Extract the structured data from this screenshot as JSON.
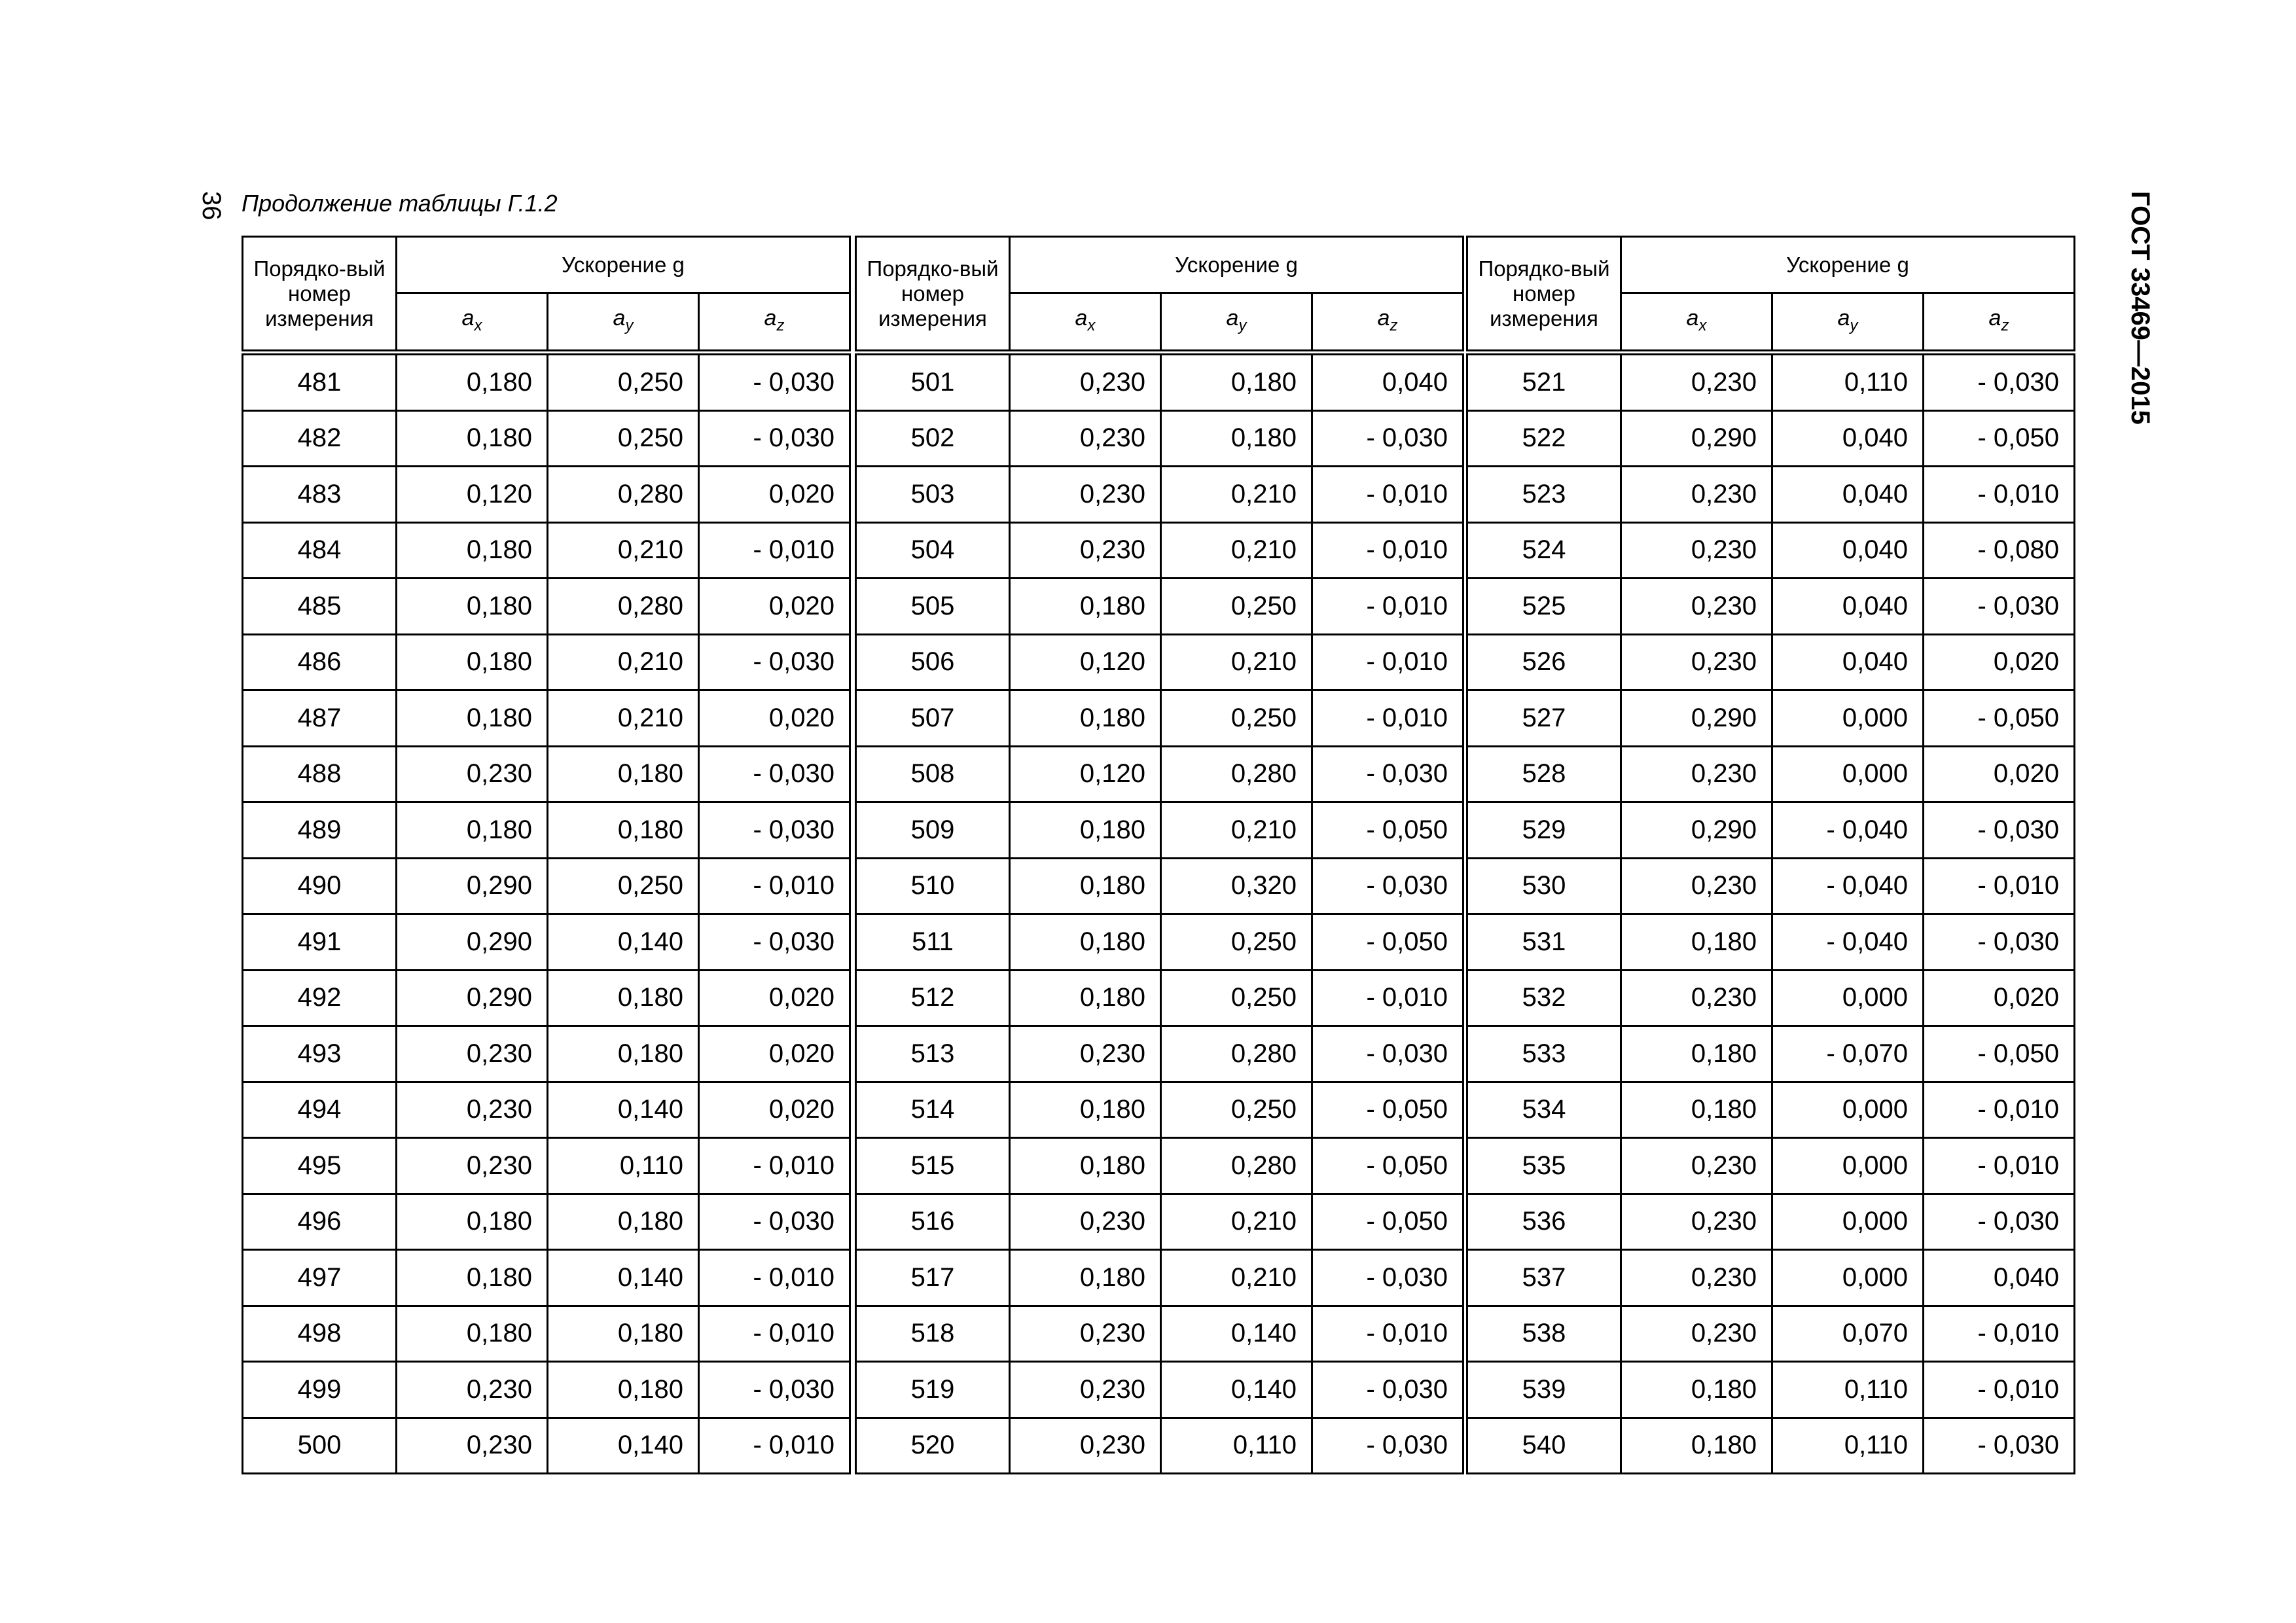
{
  "page_number": "36",
  "caption": "Продолжение таблицы Г.1.2",
  "document_code": "ГОСТ 33469—2015",
  "headers": {
    "number": "Порядко-вый номер измерения",
    "acceleration": "Ускорение g",
    "ax": "x",
    "ay": "y",
    "az": "z",
    "a": "a"
  },
  "groups": [
    {
      "rows": [
        [
          "481",
          "0,180",
          "0,250",
          "- 0,030"
        ],
        [
          "482",
          "0,180",
          "0,250",
          "- 0,030"
        ],
        [
          "483",
          "0,120",
          "0,280",
          "0,020"
        ],
        [
          "484",
          "0,180",
          "0,210",
          "- 0,010"
        ],
        [
          "485",
          "0,180",
          "0,280",
          "0,020"
        ],
        [
          "486",
          "0,180",
          "0,210",
          "- 0,030"
        ],
        [
          "487",
          "0,180",
          "0,210",
          "0,020"
        ],
        [
          "488",
          "0,230",
          "0,180",
          "- 0,030"
        ],
        [
          "489",
          "0,180",
          "0,180",
          "- 0,030"
        ],
        [
          "490",
          "0,290",
          "0,250",
          "- 0,010"
        ],
        [
          "491",
          "0,290",
          "0,140",
          "- 0,030"
        ],
        [
          "492",
          "0,290",
          "0,180",
          "0,020"
        ],
        [
          "493",
          "0,230",
          "0,180",
          "0,020"
        ],
        [
          "494",
          "0,230",
          "0,140",
          "0,020"
        ],
        [
          "495",
          "0,230",
          "0,110",
          "- 0,010"
        ],
        [
          "496",
          "0,180",
          "0,180",
          "- 0,030"
        ],
        [
          "497",
          "0,180",
          "0,140",
          "- 0,010"
        ],
        [
          "498",
          "0,180",
          "0,180",
          "- 0,010"
        ],
        [
          "499",
          "0,230",
          "0,180",
          "- 0,030"
        ],
        [
          "500",
          "0,230",
          "0,140",
          "- 0,010"
        ]
      ]
    },
    {
      "rows": [
        [
          "501",
          "0,230",
          "0,180",
          "0,040"
        ],
        [
          "502",
          "0,230",
          "0,180",
          "- 0,030"
        ],
        [
          "503",
          "0,230",
          "0,210",
          "- 0,010"
        ],
        [
          "504",
          "0,230",
          "0,210",
          "- 0,010"
        ],
        [
          "505",
          "0,180",
          "0,250",
          "- 0,010"
        ],
        [
          "506",
          "0,120",
          "0,210",
          "- 0,010"
        ],
        [
          "507",
          "0,180",
          "0,250",
          "- 0,010"
        ],
        [
          "508",
          "0,120",
          "0,280",
          "- 0,030"
        ],
        [
          "509",
          "0,180",
          "0,210",
          "- 0,050"
        ],
        [
          "510",
          "0,180",
          "0,320",
          "- 0,030"
        ],
        [
          "511",
          "0,180",
          "0,250",
          "- 0,050"
        ],
        [
          "512",
          "0,180",
          "0,250",
          "- 0,010"
        ],
        [
          "513",
          "0,230",
          "0,280",
          "- 0,030"
        ],
        [
          "514",
          "0,180",
          "0,250",
          "- 0,050"
        ],
        [
          "515",
          "0,180",
          "0,280",
          "- 0,050"
        ],
        [
          "516",
          "0,230",
          "0,210",
          "- 0,050"
        ],
        [
          "517",
          "0,180",
          "0,210",
          "- 0,030"
        ],
        [
          "518",
          "0,230",
          "0,140",
          "- 0,010"
        ],
        [
          "519",
          "0,230",
          "0,140",
          "- 0,030"
        ],
        [
          "520",
          "0,230",
          "0,110",
          "- 0,030"
        ]
      ]
    },
    {
      "rows": [
        [
          "521",
          "0,230",
          "0,110",
          "- 0,030"
        ],
        [
          "522",
          "0,290",
          "0,040",
          "- 0,050"
        ],
        [
          "523",
          "0,230",
          "0,040",
          "- 0,010"
        ],
        [
          "524",
          "0,230",
          "0,040",
          "- 0,080"
        ],
        [
          "525",
          "0,230",
          "0,040",
          "- 0,030"
        ],
        [
          "526",
          "0,230",
          "0,040",
          "0,020"
        ],
        [
          "527",
          "0,290",
          "0,000",
          "- 0,050"
        ],
        [
          "528",
          "0,230",
          "0,000",
          "0,020"
        ],
        [
          "529",
          "0,290",
          "- 0,040",
          "- 0,030"
        ],
        [
          "530",
          "0,230",
          "- 0,040",
          "- 0,010"
        ],
        [
          "531",
          "0,180",
          "- 0,040",
          "- 0,030"
        ],
        [
          "532",
          "0,230",
          "0,000",
          "0,020"
        ],
        [
          "533",
          "0,180",
          "- 0,070",
          "- 0,050"
        ],
        [
          "534",
          "0,180",
          "0,000",
          "- 0,010"
        ],
        [
          "535",
          "0,230",
          "0,000",
          "- 0,010"
        ],
        [
          "536",
          "0,230",
          "0,000",
          "- 0,030"
        ],
        [
          "537",
          "0,230",
          "0,000",
          "0,040"
        ],
        [
          "538",
          "0,230",
          "0,070",
          "- 0,010"
        ],
        [
          "539",
          "0,180",
          "0,110",
          "- 0,010"
        ],
        [
          "540",
          "0,180",
          "0,110",
          "- 0,030"
        ]
      ]
    }
  ]
}
